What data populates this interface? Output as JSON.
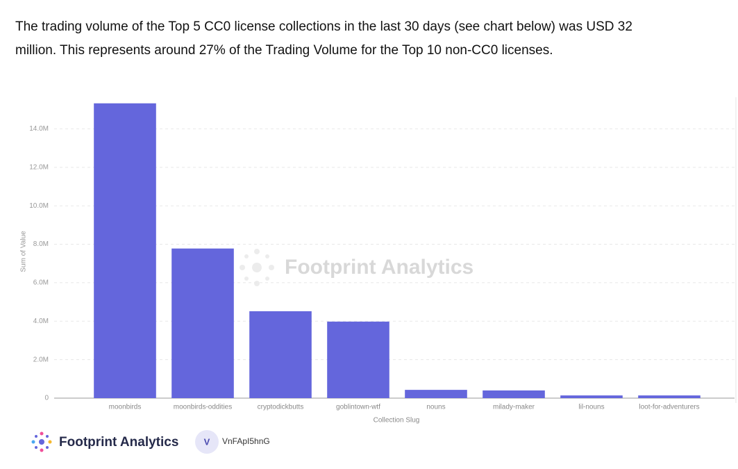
{
  "intro": [
    "The trading volume of the Top 5 CC0 license collections in the last 30 days (see chart below) was USD 32",
    "million. This represents around 27% of the Trading Volume for the Top 10 non-CC0 licenses."
  ],
  "chart_data": {
    "type": "bar",
    "watermark": "Footprint Analytics",
    "x_label": "Collection Slug",
    "y_label": "Sum of Value",
    "categories": [
      "moonbirds",
      "moonbirds-oddities",
      "cryptodickbutts",
      "goblintown-wtf",
      "nouns",
      "milady-maker",
      "lil-nouns",
      "loot-for-adventurers"
    ],
    "values": [
      15330000,
      7780000,
      4520000,
      3980000,
      430000,
      400000,
      140000,
      140000
    ],
    "color": "#6466dc",
    "ylim": [
      0,
      15500000
    ],
    "yticks": [
      0,
      {
        "value": 2000000,
        "label": "2.0M"
      },
      {
        "value": 4000000,
        "label": "4.0M"
      },
      {
        "value": 6000000,
        "label": "6.0M"
      },
      {
        "value": 8000000,
        "label": "8.0M"
      },
      {
        "value": 10000000,
        "label": "10.0M"
      },
      {
        "value": 12000000,
        "label": "12.0M"
      },
      {
        "value": 14000000,
        "label": "14.0M"
      }
    ],
    "grid": true
  },
  "footer": {
    "brand": "Footprint Analytics",
    "avatar": "V",
    "user": "VnFApI5hnG"
  }
}
